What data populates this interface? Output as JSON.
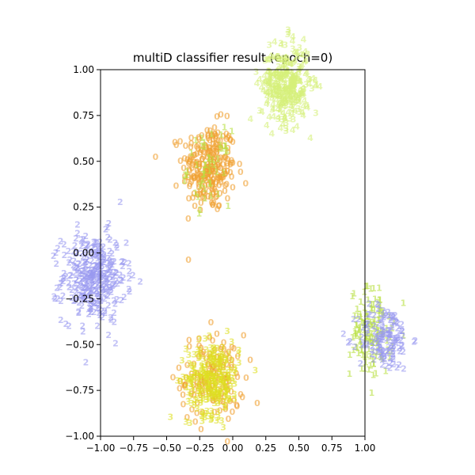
{
  "chart_data": {
    "type": "scatter",
    "title": "multiD classifier result (epoch=0)",
    "xlabel": "",
    "ylabel": "",
    "xlim": [
      -1.0,
      1.0
    ],
    "ylim": [
      -1.0,
      1.0
    ],
    "grid": false,
    "marker": "digit-labels",
    "xticks": [
      "−1.00",
      "−0.75",
      "−0.50",
      "−0.25",
      "0.00",
      "0.25",
      "0.50",
      "0.75",
      "1.00"
    ],
    "yticks": [
      "1.00",
      "0.75",
      "0.50",
      "0.25",
      "0.00",
      "−0.25",
      "−0.50",
      "−0.75",
      "−1.00"
    ],
    "clusters": [
      {
        "label": "0",
        "color": "#f0a030",
        "center": [
          -0.18,
          0.45
        ],
        "spread": [
          0.1,
          0.12
        ],
        "count": 260
      },
      {
        "label": "0",
        "color": "#f0a030",
        "center": [
          -0.15,
          -0.7
        ],
        "spread": [
          0.12,
          0.12
        ],
        "count": 150
      },
      {
        "label": "1",
        "color": "#b8e040",
        "center": [
          -0.18,
          0.45
        ],
        "spread": [
          0.08,
          0.1
        ],
        "count": 50
      },
      {
        "label": "1",
        "color": "#b8e040",
        "center": [
          1.05,
          -0.45
        ],
        "spread": [
          0.08,
          0.12
        ],
        "count": 140
      },
      {
        "label": "2",
        "color": "#9a9af0",
        "center": [
          -1.05,
          -0.15
        ],
        "spread": [
          0.12,
          0.12
        ],
        "count": 330
      },
      {
        "label": "2",
        "color": "#9a9af0",
        "center": [
          1.15,
          -0.48
        ],
        "spread": [
          0.1,
          0.09
        ],
        "count": 140
      },
      {
        "label": "3",
        "color": "#dde020",
        "center": [
          -0.15,
          -0.7
        ],
        "spread": [
          0.1,
          0.1
        ],
        "count": 250
      },
      {
        "label": "3",
        "color": "#d6f07a",
        "center": [
          0.4,
          0.9
        ],
        "spread": [
          0.1,
          0.12
        ],
        "count": 80
      },
      {
        "label": "4",
        "color": "#d6f07a",
        "center": [
          0.4,
          0.9
        ],
        "spread": [
          0.09,
          0.1
        ],
        "count": 260
      }
    ]
  }
}
